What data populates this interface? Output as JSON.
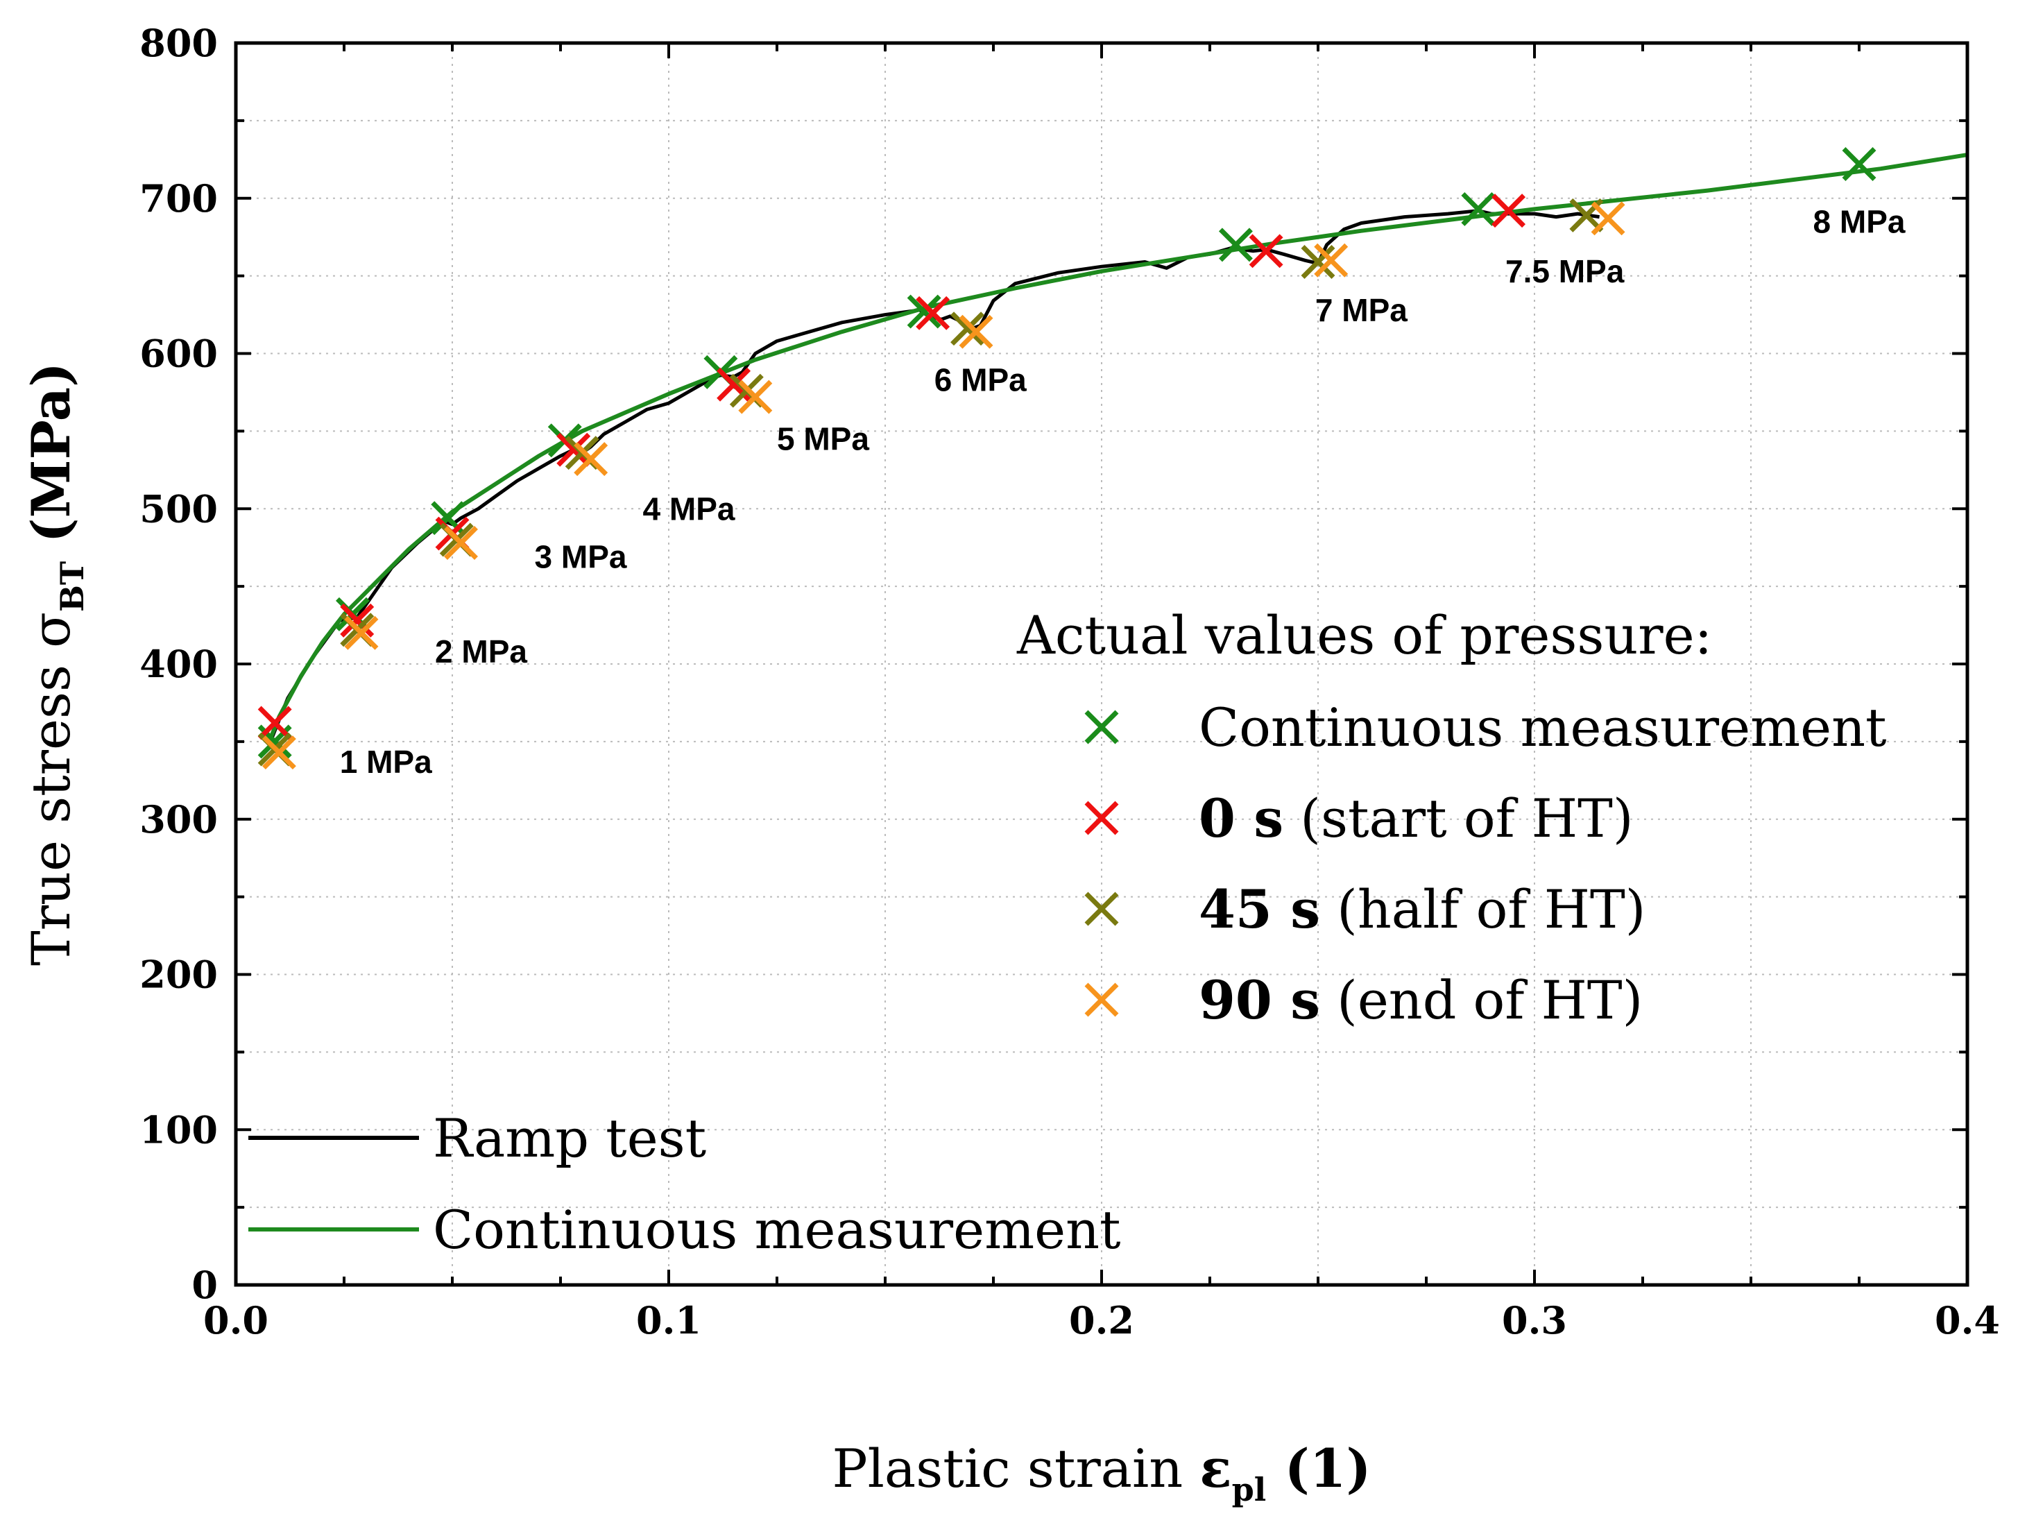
{
  "chart_data": {
    "type": "line",
    "x_label": {
      "main": "Plastic strain ",
      "symbol": "ε",
      "sub": "pl",
      "unit": " (1)"
    },
    "y_label": {
      "main": "True stress ",
      "symbol": "σ",
      "sub": "BT",
      "unit": " (MPa)"
    },
    "xlim": [
      0.0,
      0.4
    ],
    "ylim": [
      0,
      800
    ],
    "x_ticks": [
      0.0,
      0.1,
      0.2,
      0.3,
      0.4
    ],
    "x_tick_labels": [
      "0.0",
      "0.1",
      "0.2",
      "0.3",
      "0.4"
    ],
    "y_ticks": [
      0,
      100,
      200,
      300,
      400,
      500,
      600,
      700,
      800
    ],
    "y_tick_labels": [
      "0",
      "100",
      "200",
      "300",
      "400",
      "500",
      "600",
      "700",
      "800"
    ],
    "grid": true,
    "colors": {
      "ramp": "#000000",
      "continuous": "#1e8a1e",
      "marker_continuous": "#1a8c1a",
      "marker_0s": "#ee1111",
      "marker_45s": "#7a7a10",
      "marker_90s": "#f7941d"
    },
    "lines": [
      {
        "name": "Ramp test",
        "color_key": "ramp",
        "x": [
          0.008,
          0.012,
          0.018,
          0.024,
          0.028,
          0.03,
          0.036,
          0.042,
          0.048,
          0.05,
          0.052,
          0.056,
          0.06,
          0.065,
          0.07,
          0.075,
          0.078,
          0.08,
          0.082,
          0.085,
          0.09,
          0.095,
          0.1,
          0.105,
          0.11,
          0.112,
          0.115,
          0.117,
          0.12,
          0.125,
          0.13,
          0.14,
          0.15,
          0.158,
          0.16,
          0.163,
          0.165,
          0.168,
          0.17,
          0.172,
          0.175,
          0.18,
          0.19,
          0.2,
          0.21,
          0.215,
          0.22,
          0.225,
          0.23,
          0.235,
          0.238,
          0.242,
          0.247,
          0.25,
          0.252,
          0.256,
          0.26,
          0.27,
          0.28,
          0.287,
          0.29,
          0.295,
          0.3,
          0.305,
          0.31,
          0.315
        ],
        "y": [
          350,
          378,
          405,
          428,
          430,
          438,
          462,
          478,
          492,
          490,
          494,
          500,
          508,
          518,
          526,
          534,
          538,
          536,
          540,
          548,
          556,
          564,
          568,
          576,
          584,
          586,
          585,
          588,
          600,
          608,
          612,
          620,
          625,
          628,
          624,
          622,
          624,
          620,
          616,
          618,
          634,
          645,
          652,
          656,
          659,
          655,
          662,
          664,
          668,
          666,
          667,
          664,
          660,
          658,
          670,
          680,
          684,
          688,
          690,
          692,
          690,
          690,
          690,
          688,
          690,
          688
        ]
      },
      {
        "name": "Continuous measurement",
        "color_key": "continuous",
        "x": [
          0.008,
          0.01,
          0.015,
          0.02,
          0.025,
          0.03,
          0.04,
          0.05,
          0.06,
          0.07,
          0.08,
          0.09,
          0.1,
          0.12,
          0.14,
          0.16,
          0.18,
          0.2,
          0.22,
          0.24,
          0.26,
          0.28,
          0.3,
          0.32,
          0.34,
          0.36,
          0.38,
          0.4
        ],
        "y": [
          352,
          366,
          392,
          414,
          432,
          446,
          474,
          498,
          516,
          534,
          550,
          562,
          574,
          596,
          614,
          630,
          642,
          653,
          662,
          671,
          679,
          686,
          693,
          699,
          705,
          712,
          719,
          728
        ]
      }
    ],
    "markers": [
      {
        "group": "1 MPa",
        "points": [
          {
            "set": "continuous",
            "x": 0.009,
            "y": 350
          },
          {
            "set": "0s",
            "x": 0.009,
            "y": 362
          },
          {
            "set": "45s",
            "x": 0.009,
            "y": 345
          },
          {
            "set": "90s",
            "x": 0.01,
            "y": 343
          }
        ]
      },
      {
        "group": "2 MPa",
        "points": [
          {
            "set": "continuous",
            "x": 0.027,
            "y": 432
          },
          {
            "set": "0s",
            "x": 0.028,
            "y": 428
          },
          {
            "set": "45s",
            "x": 0.028,
            "y": 422
          },
          {
            "set": "90s",
            "x": 0.029,
            "y": 420
          }
        ]
      },
      {
        "group": "3 MPa",
        "points": [
          {
            "set": "continuous",
            "x": 0.049,
            "y": 494
          },
          {
            "set": "0s",
            "x": 0.05,
            "y": 484
          },
          {
            "set": "45s",
            "x": 0.051,
            "y": 480
          },
          {
            "set": "90s",
            "x": 0.052,
            "y": 478
          }
        ]
      },
      {
        "group": "4 MPa",
        "points": [
          {
            "set": "continuous",
            "x": 0.076,
            "y": 544
          },
          {
            "set": "0s",
            "x": 0.078,
            "y": 538
          },
          {
            "set": "45s",
            "x": 0.08,
            "y": 536
          },
          {
            "set": "90s",
            "x": 0.082,
            "y": 532
          }
        ]
      },
      {
        "group": "5 MPa",
        "points": [
          {
            "set": "continuous",
            "x": 0.112,
            "y": 588
          },
          {
            "set": "0s",
            "x": 0.115,
            "y": 580
          },
          {
            "set": "45s",
            "x": 0.118,
            "y": 576
          },
          {
            "set": "90s",
            "x": 0.12,
            "y": 572
          }
        ]
      },
      {
        "group": "6 MPa",
        "points": [
          {
            "set": "continuous",
            "x": 0.159,
            "y": 627
          },
          {
            "set": "0s",
            "x": 0.161,
            "y": 626
          },
          {
            "set": "45s",
            "x": 0.169,
            "y": 616
          },
          {
            "set": "90s",
            "x": 0.171,
            "y": 614
          }
        ]
      },
      {
        "group": "7 MPa",
        "points": [
          {
            "set": "continuous",
            "x": 0.231,
            "y": 670
          },
          {
            "set": "0s",
            "x": 0.238,
            "y": 666
          },
          {
            "set": "45s",
            "x": 0.25,
            "y": 659
          },
          {
            "set": "90s",
            "x": 0.253,
            "y": 660
          }
        ]
      },
      {
        "group": "7.5 MPa",
        "points": [
          {
            "set": "continuous",
            "x": 0.287,
            "y": 693
          },
          {
            "set": "0s",
            "x": 0.294,
            "y": 692
          },
          {
            "set": "45s",
            "x": 0.312,
            "y": 689
          },
          {
            "set": "90s",
            "x": 0.317,
            "y": 687
          }
        ]
      },
      {
        "group": "8 MPa",
        "points": [
          {
            "set": "continuous",
            "x": 0.375,
            "y": 722
          }
        ]
      }
    ],
    "annotations": [
      {
        "text": "1 MPa",
        "x": 0.024,
        "y": 337
      },
      {
        "text": "2 MPa",
        "x": 0.046,
        "y": 408
      },
      {
        "text": "3 MPa",
        "x": 0.069,
        "y": 469
      },
      {
        "text": "4 MPa",
        "x": 0.094,
        "y": 500
      },
      {
        "text": "5 MPa",
        "x": 0.125,
        "y": 545
      },
      {
        "text": "6 MPa",
        "x": 0.172,
        "y": 583
      },
      {
        "text": "7 MPa",
        "x": 0.26,
        "y": 628
      },
      {
        "text": "7.5 MPa",
        "x": 0.307,
        "y": 653
      },
      {
        "text": "8 MPa",
        "x": 0.375,
        "y": 685
      }
    ],
    "marker_legend": {
      "title": "Actual values of pressure:",
      "items": [
        {
          "set": "continuous",
          "bold": "",
          "text": "Continuous measurement"
        },
        {
          "set": "0s",
          "bold": "0 s",
          "text": " (start of HT)"
        },
        {
          "set": "45s",
          "bold": "45 s",
          "text": " (half of HT)"
        },
        {
          "set": "90s",
          "bold": "90 s",
          "text": " (end of HT)"
        }
      ]
    },
    "line_legend": {
      "items": [
        {
          "color_key": "ramp",
          "label": "Ramp test"
        },
        {
          "color_key": "continuous",
          "label": "Continuous measurement"
        }
      ]
    }
  }
}
